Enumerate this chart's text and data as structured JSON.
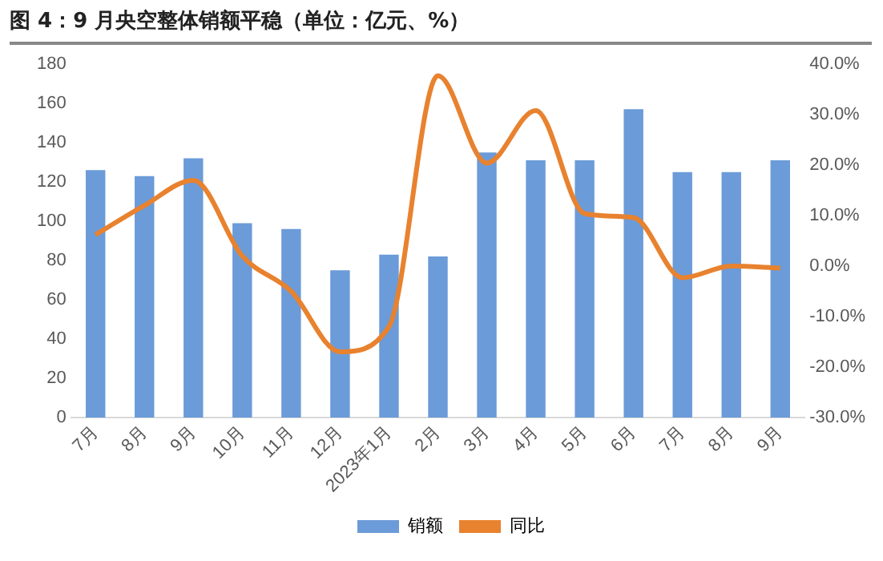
{
  "chart_data": {
    "type": "bar",
    "title": "图 4：9 月央空整体销额平稳（单位：亿元、%）",
    "categories": [
      "7月",
      "8月",
      "9月",
      "10月",
      "11月",
      "12月",
      "2023年1月",
      "2月",
      "3月",
      "4月",
      "5月",
      "6月",
      "7月",
      "8月",
      "9月"
    ],
    "series": [
      {
        "name": "销额",
        "color": "#6b9bd8",
        "values": [
          126,
          123,
          132,
          99,
          96,
          75,
          83,
          82,
          135,
          131,
          131,
          157,
          125,
          125,
          131
        ]
      },
      {
        "name": "同比",
        "type": "line",
        "axis": "y2",
        "color": "#e8822f",
        "values": [
          6.2,
          12,
          17,
          2,
          -5,
          -17,
          -12,
          37.7,
          20.4,
          30.8,
          10.4,
          9.6,
          -2.3,
          0,
          -0.4
        ]
      }
    ],
    "ylim": [
      0,
      180
    ],
    "yticks": [
      0,
      20,
      40,
      60,
      80,
      100,
      120,
      140,
      160,
      180
    ],
    "y2lim": [
      -30,
      40
    ],
    "y2ticks": [
      {
        "value": -30,
        "label": "-30.0%"
      },
      {
        "value": -20,
        "label": "-20.0%"
      },
      {
        "value": -10,
        "label": "-10.0%"
      },
      {
        "value": 0,
        "label": "0.0%"
      },
      {
        "value": 10,
        "label": "10.0%"
      },
      {
        "value": 20,
        "label": "20.0%"
      },
      {
        "value": 30,
        "label": "30.0%"
      },
      {
        "value": 40,
        "label": "40.0%"
      }
    ],
    "grid": false,
    "legend": "bottom",
    "marker": "none"
  }
}
